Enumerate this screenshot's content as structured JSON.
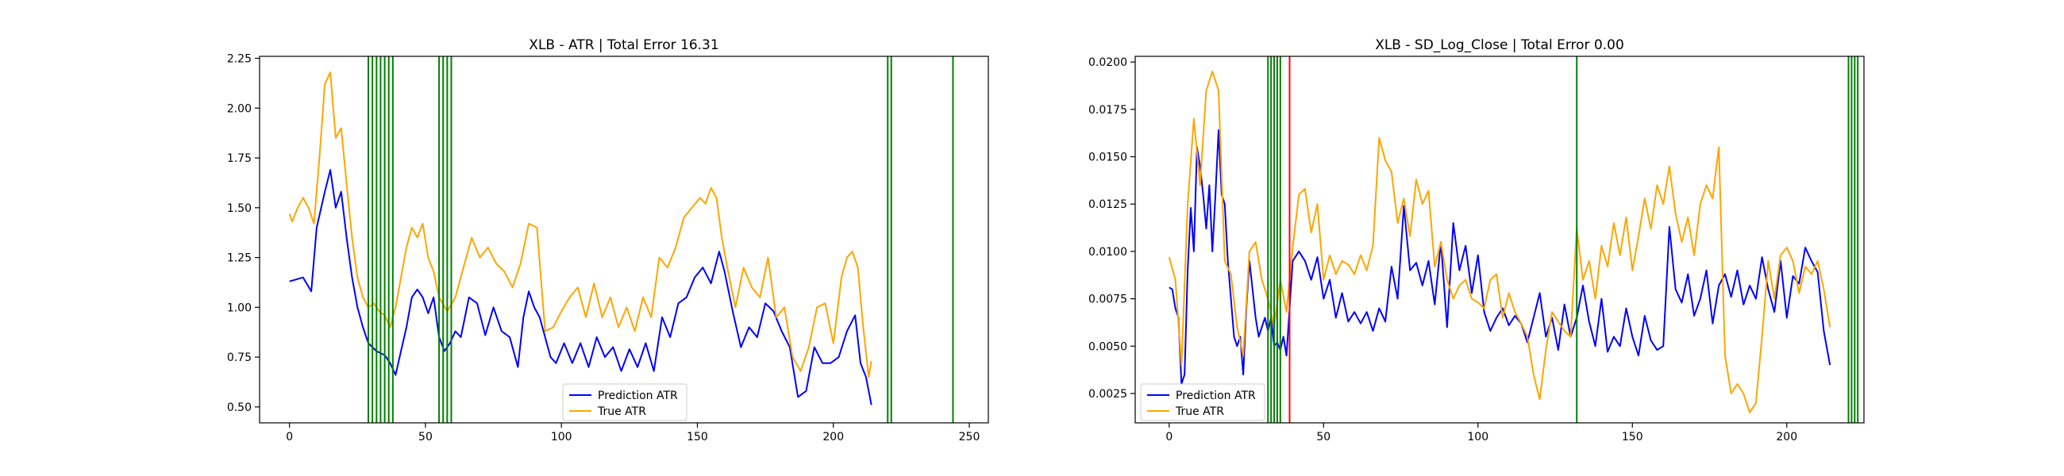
{
  "chart_data": [
    {
      "type": "line",
      "title": "XLB - ATR | Total Error 16.31",
      "xlabel": "",
      "ylabel": "",
      "xlim": [
        -11,
        257
      ],
      "ylim": [
        0.42,
        2.26
      ],
      "xticks": [
        0,
        50,
        100,
        150,
        200,
        250
      ],
      "yticks": [
        0.5,
        0.75,
        1.0,
        1.25,
        1.5,
        1.75,
        2.0,
        2.25
      ],
      "ytick_labels": [
        "0.50",
        "0.75",
        "1.00",
        "1.25",
        "1.50",
        "1.75",
        "2.00",
        "2.25"
      ],
      "grid": false,
      "legend_position": "lower center",
      "legend": [
        "Prediction ATR",
        "True ATR"
      ],
      "series": [
        {
          "name": "Prediction ATR",
          "color": "#0000ff",
          "x": [
            0,
            5,
            8,
            10,
            13,
            15,
            17,
            19,
            21,
            23,
            25,
            27,
            29,
            32,
            35,
            37,
            39,
            41,
            43,
            45,
            47,
            49,
            51,
            53,
            55,
            57,
            59,
            61,
            63,
            66,
            69,
            72,
            75,
            78,
            81,
            84,
            86,
            88,
            90,
            92,
            94,
            96,
            98,
            101,
            104,
            107,
            110,
            113,
            116,
            119,
            122,
            125,
            128,
            131,
            134,
            137,
            140,
            143,
            146,
            149,
            152,
            155,
            158,
            160,
            163,
            166,
            169,
            172,
            175,
            178,
            181,
            184,
            187,
            190,
            193,
            196,
            199,
            202,
            205,
            208,
            210,
            212,
            214
          ],
          "y": [
            1.13,
            1.15,
            1.08,
            1.4,
            1.58,
            1.69,
            1.5,
            1.58,
            1.35,
            1.15,
            1.0,
            0.9,
            0.82,
            0.78,
            0.76,
            0.72,
            0.66,
            0.78,
            0.9,
            1.05,
            1.09,
            1.05,
            0.97,
            1.05,
            0.85,
            0.78,
            0.82,
            0.88,
            0.85,
            1.05,
            1.02,
            0.86,
            1.0,
            0.88,
            0.85,
            0.7,
            0.95,
            1.08,
            1.0,
            0.95,
            0.85,
            0.75,
            0.72,
            0.82,
            0.72,
            0.82,
            0.7,
            0.85,
            0.75,
            0.8,
            0.68,
            0.79,
            0.7,
            0.82,
            0.68,
            0.95,
            0.85,
            1.02,
            1.05,
            1.15,
            1.2,
            1.12,
            1.28,
            1.18,
            0.98,
            0.8,
            0.9,
            0.85,
            1.02,
            0.98,
            0.88,
            0.8,
            0.55,
            0.58,
            0.8,
            0.72,
            0.72,
            0.75,
            0.88,
            0.96,
            0.72,
            0.65,
            0.51
          ]
        },
        {
          "name": "True ATR",
          "color": "#ffa500",
          "x": [
            0,
            1,
            3,
            5,
            7,
            9,
            11,
            13,
            15,
            17,
            19,
            21,
            23,
            25,
            27,
            29,
            31,
            33,
            35,
            37,
            39,
            41,
            43,
            45,
            47,
            49,
            51,
            53,
            55,
            58,
            61,
            64,
            67,
            70,
            73,
            76,
            79,
            82,
            85,
            88,
            91,
            94,
            97,
            100,
            103,
            106,
            109,
            112,
            115,
            118,
            121,
            124,
            127,
            130,
            133,
            136,
            139,
            142,
            145,
            148,
            151,
            153,
            155,
            157,
            159,
            161,
            164,
            167,
            170,
            173,
            176,
            179,
            182,
            185,
            188,
            191,
            194,
            197,
            200,
            203,
            205,
            207,
            209,
            211,
            213,
            214
          ],
          "y": [
            1.47,
            1.43,
            1.5,
            1.55,
            1.5,
            1.42,
            1.75,
            2.12,
            2.18,
            1.85,
            1.9,
            1.62,
            1.35,
            1.15,
            1.05,
            1.0,
            1.02,
            0.98,
            0.96,
            0.9,
            1.0,
            1.15,
            1.3,
            1.4,
            1.35,
            1.42,
            1.25,
            1.18,
            1.05,
            0.98,
            1.05,
            1.2,
            1.35,
            1.25,
            1.3,
            1.22,
            1.18,
            1.1,
            1.22,
            1.42,
            1.4,
            0.88,
            0.9,
            0.98,
            1.05,
            1.1,
            0.95,
            1.12,
            0.95,
            1.05,
            0.9,
            1.0,
            0.88,
            1.05,
            0.95,
            1.25,
            1.2,
            1.3,
            1.45,
            1.5,
            1.55,
            1.52,
            1.6,
            1.55,
            1.35,
            1.2,
            1.0,
            1.2,
            1.1,
            1.05,
            1.25,
            0.95,
            1.0,
            0.75,
            0.68,
            0.8,
            1.0,
            1.02,
            0.82,
            1.15,
            1.25,
            1.28,
            1.2,
            0.9,
            0.65,
            0.73
          ]
        }
      ],
      "vertical_lines": [
        {
          "x": 29,
          "color": "#008000"
        },
        {
          "x": 30.5,
          "color": "#008000"
        },
        {
          "x": 32,
          "color": "#008000"
        },
        {
          "x": 33.5,
          "color": "#008000"
        },
        {
          "x": 35,
          "color": "#008000"
        },
        {
          "x": 36.5,
          "color": "#008000"
        },
        {
          "x": 38,
          "color": "#008000"
        },
        {
          "x": 55,
          "color": "#008000"
        },
        {
          "x": 56.5,
          "color": "#008000"
        },
        {
          "x": 58,
          "color": "#008000"
        },
        {
          "x": 59.5,
          "color": "#008000"
        },
        {
          "x": 220,
          "color": "#008000"
        },
        {
          "x": 221.3,
          "color": "#008000"
        },
        {
          "x": 244,
          "color": "#008000"
        }
      ]
    },
    {
      "type": "line",
      "title": "XLB - SD_Log_Close | Total Error 0.00",
      "xlabel": "",
      "ylabel": "",
      "xlim": [
        -11,
        225
      ],
      "ylim": [
        0.00095,
        0.0203
      ],
      "xticks": [
        0,
        50,
        100,
        150,
        200
      ],
      "yticks": [
        0.0025,
        0.005,
        0.0075,
        0.01,
        0.0125,
        0.015,
        0.0175,
        0.02
      ],
      "ytick_labels": [
        "0.0025",
        "0.0050",
        "0.0075",
        "0.0100",
        "0.0125",
        "0.0150",
        "0.0175",
        "0.0200"
      ],
      "grid": false,
      "legend_position": "lower left",
      "legend": [
        "Prediction ATR",
        "True ATR"
      ],
      "series": [
        {
          "name": "Prediction ATR",
          "color": "#0000ff",
          "x": [
            0,
            1,
            2,
            3,
            4,
            5,
            6,
            7,
            8,
            9,
            10,
            11,
            12,
            13,
            14,
            15,
            16,
            17,
            18,
            19,
            20,
            21,
            22,
            23,
            24,
            25,
            26,
            27,
            28,
            29,
            30,
            31,
            32,
            33,
            34,
            35,
            36,
            37,
            38,
            40,
            42,
            44,
            46,
            48,
            50,
            52,
            54,
            56,
            58,
            60,
            62,
            64,
            66,
            68,
            70,
            72,
            74,
            76,
            78,
            80,
            82,
            84,
            86,
            88,
            90,
            92,
            94,
            96,
            98,
            100,
            102,
            104,
            106,
            108,
            110,
            112,
            114,
            116,
            118,
            120,
            122,
            124,
            126,
            128,
            130,
            132,
            134,
            136,
            138,
            140,
            142,
            144,
            146,
            148,
            150,
            152,
            154,
            156,
            158,
            160,
            162,
            164,
            166,
            168,
            170,
            172,
            174,
            176,
            178,
            180,
            182,
            184,
            186,
            188,
            190,
            192,
            194,
            196,
            198,
            200,
            202,
            204,
            206,
            208,
            210,
            212,
            214
          ],
          "y": [
            0.0081,
            0.008,
            0.007,
            0.0065,
            0.003,
            0.0035,
            0.009,
            0.0123,
            0.01,
            0.0155,
            0.0145,
            0.013,
            0.0112,
            0.0135,
            0.01,
            0.013,
            0.0164,
            0.013,
            0.0125,
            0.0095,
            0.0075,
            0.0055,
            0.005,
            0.0055,
            0.0035,
            0.007,
            0.0095,
            0.008,
            0.0065,
            0.0055,
            0.006,
            0.0065,
            0.0058,
            0.0065,
            0.005,
            0.0052,
            0.0048,
            0.0055,
            0.0045,
            0.0095,
            0.01,
            0.0095,
            0.0085,
            0.0097,
            0.0075,
            0.0085,
            0.0065,
            0.0078,
            0.0063,
            0.0068,
            0.0062,
            0.0068,
            0.0058,
            0.007,
            0.0063,
            0.0092,
            0.0075,
            0.0124,
            0.009,
            0.0094,
            0.0082,
            0.0095,
            0.0072,
            0.0105,
            0.006,
            0.0115,
            0.009,
            0.0103,
            0.0078,
            0.0098,
            0.0068,
            0.0058,
            0.0065,
            0.007,
            0.0061,
            0.0066,
            0.0062,
            0.0052,
            0.0065,
            0.0078,
            0.0055,
            0.0065,
            0.0048,
            0.0072,
            0.0055,
            0.0065,
            0.0082,
            0.0063,
            0.005,
            0.0075,
            0.0047,
            0.0055,
            0.005,
            0.007,
            0.0055,
            0.0045,
            0.0066,
            0.0053,
            0.0048,
            0.005,
            0.0113,
            0.008,
            0.0073,
            0.0088,
            0.0066,
            0.0075,
            0.009,
            0.0062,
            0.0082,
            0.0088,
            0.0076,
            0.009,
            0.0072,
            0.0082,
            0.0075,
            0.0097,
            0.008,
            0.0068,
            0.0095,
            0.0065,
            0.0087,
            0.0083,
            0.0102,
            0.0095,
            0.0089,
            0.0058,
            0.004
          ]
        },
        {
          "name": "True ATR",
          "color": "#ffa500",
          "x": [
            0,
            2,
            4,
            6,
            8,
            10,
            12,
            14,
            16,
            18,
            20,
            22,
            24,
            26,
            28,
            30,
            32,
            34,
            36,
            38,
            40,
            42,
            44,
            46,
            48,
            50,
            52,
            54,
            56,
            58,
            60,
            62,
            64,
            66,
            68,
            70,
            72,
            74,
            76,
            78,
            80,
            82,
            84,
            86,
            88,
            90,
            92,
            94,
            96,
            98,
            100,
            102,
            104,
            106,
            108,
            110,
            112,
            114,
            116,
            118,
            120,
            122,
            124,
            126,
            128,
            130,
            132,
            134,
            136,
            138,
            140,
            142,
            144,
            146,
            148,
            150,
            152,
            154,
            156,
            158,
            160,
            162,
            164,
            166,
            168,
            170,
            172,
            174,
            176,
            178,
            180,
            182,
            184,
            186,
            188,
            190,
            192,
            194,
            196,
            198,
            200,
            202,
            204,
            206,
            208,
            210,
            212,
            214
          ],
          "y": [
            0.0097,
            0.0085,
            0.004,
            0.0125,
            0.017,
            0.0135,
            0.0185,
            0.0195,
            0.0185,
            0.0095,
            0.0088,
            0.006,
            0.0045,
            0.01,
            0.0105,
            0.0085,
            0.0075,
            0.006,
            0.0085,
            0.0068,
            0.0102,
            0.013,
            0.0133,
            0.011,
            0.0125,
            0.0085,
            0.0098,
            0.0088,
            0.0095,
            0.0093,
            0.0088,
            0.0098,
            0.009,
            0.0103,
            0.016,
            0.0148,
            0.0142,
            0.0115,
            0.0128,
            0.0108,
            0.0138,
            0.0125,
            0.0132,
            0.0092,
            0.0105,
            0.0085,
            0.0075,
            0.0082,
            0.0085,
            0.0075,
            0.0073,
            0.007,
            0.0085,
            0.0088,
            0.0065,
            0.0078,
            0.0068,
            0.0062,
            0.0055,
            0.0035,
            0.0022,
            0.0048,
            0.0068,
            0.0063,
            0.0058,
            0.0055,
            0.0112,
            0.0085,
            0.0095,
            0.0075,
            0.0103,
            0.0092,
            0.0115,
            0.0098,
            0.0118,
            0.009,
            0.0108,
            0.0128,
            0.0112,
            0.0135,
            0.0125,
            0.0145,
            0.012,
            0.0105,
            0.0118,
            0.0098,
            0.0125,
            0.0135,
            0.0128,
            0.0155,
            0.0045,
            0.0025,
            0.003,
            0.0025,
            0.0015,
            0.002,
            0.0055,
            0.0095,
            0.0075,
            0.0098,
            0.0102,
            0.0095,
            0.0078,
            0.0092,
            0.0088,
            0.0095,
            0.008,
            0.006
          ]
        }
      ],
      "vertical_lines": [
        {
          "x": 32,
          "color": "#008000"
        },
        {
          "x": 33,
          "color": "#008000"
        },
        {
          "x": 34,
          "color": "#008000"
        },
        {
          "x": 35,
          "color": "#008000"
        },
        {
          "x": 36,
          "color": "#008000"
        },
        {
          "x": 39,
          "color": "#ff0000"
        },
        {
          "x": 132,
          "color": "#008000"
        },
        {
          "x": 220,
          "color": "#008000"
        },
        {
          "x": 221,
          "color": "#008000"
        },
        {
          "x": 222,
          "color": "#008000"
        },
        {
          "x": 223,
          "color": "#008000"
        }
      ]
    }
  ]
}
